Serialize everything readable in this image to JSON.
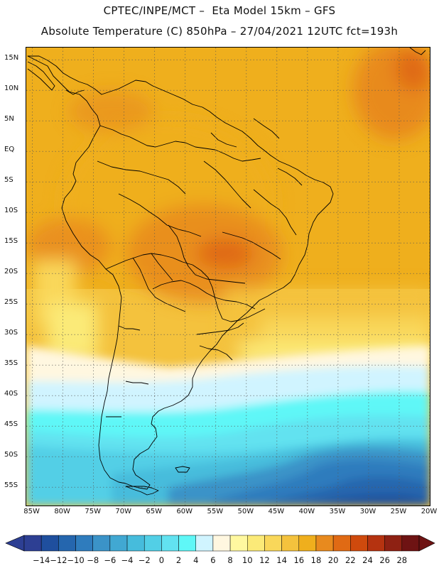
{
  "header": {
    "line1": "CPTEC/INPE/MCT –  Eta Model 15km – GFS",
    "line2": "Absolute Temperature (C) 850hPa – 27/04/2021 12UTC fct=193h"
  },
  "map": {
    "lat_labels": [
      "15N",
      "10N",
      "5N",
      "EQ",
      "5S",
      "10S",
      "15S",
      "20S",
      "25S",
      "30S",
      "35S",
      "40S",
      "45S",
      "50S",
      "55S"
    ],
    "lat_values": [
      15,
      10,
      5,
      0,
      -5,
      -10,
      -15,
      -20,
      -25,
      -30,
      -35,
      -40,
      -45,
      -50,
      -55
    ],
    "lon_labels": [
      "85W",
      "80W",
      "75W",
      "70W",
      "65W",
      "60W",
      "55W",
      "50W",
      "45W",
      "40W",
      "35W",
      "30W",
      "25W",
      "20W"
    ],
    "lon_values": [
      -85,
      -80,
      -75,
      -70,
      -65,
      -60,
      -55,
      -50,
      -45,
      -40,
      -35,
      -30,
      -25,
      -20
    ],
    "lon_range": [
      -86,
      -20
    ],
    "lat_range": [
      -58,
      17
    ],
    "grid": "dotted"
  },
  "legend": {
    "labels": [
      "-14",
      "-12",
      "-10",
      "-8",
      "-6",
      "-4",
      "-2",
      "0",
      "2",
      "4",
      "6",
      "8",
      "10",
      "12",
      "14",
      "16",
      "18",
      "20",
      "22",
      "24",
      "26",
      "28"
    ],
    "colors": [
      "#2d3f93",
      "#1f4f9e",
      "#2566ae",
      "#2f7cbd",
      "#3b93c8",
      "#41a8d2",
      "#46bcdc",
      "#52cfe6",
      "#62e2f0",
      "#5ff7f7",
      "#d0f4ff",
      "#fff7e0",
      "#fff8a0",
      "#fbea78",
      "#f9d75a",
      "#f4c23d",
      "#efaf1d",
      "#e88a1e",
      "#e06a14",
      "#cf4a0d",
      "#b53310",
      "#8e2113",
      "#6e1313"
    ]
  }
}
